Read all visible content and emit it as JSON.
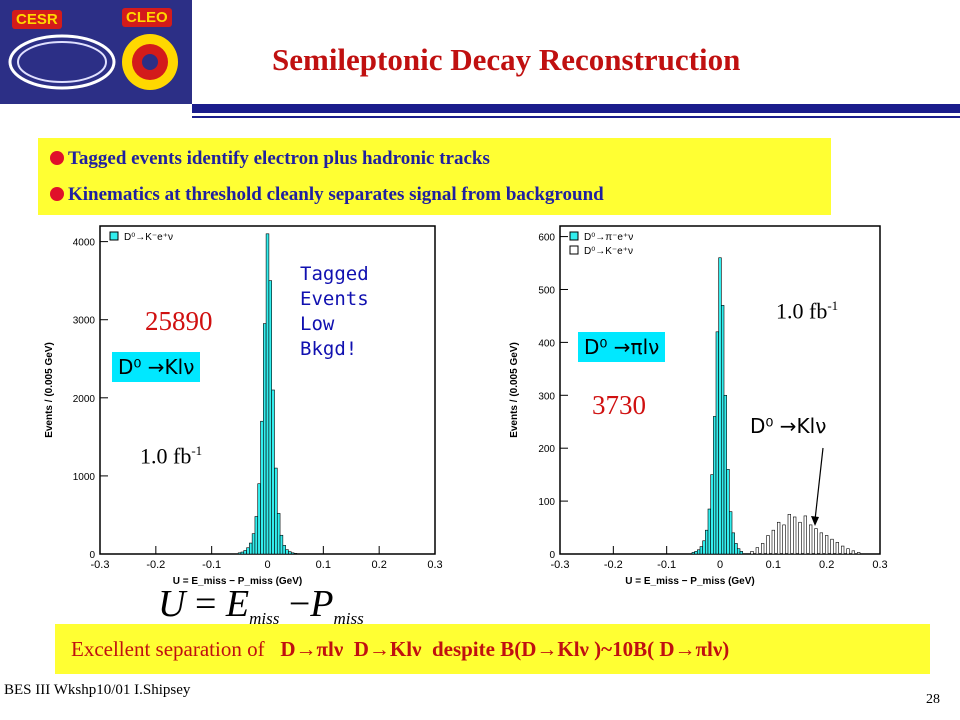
{
  "header": {
    "logo_cesr": "CESR",
    "logo_cleo": "CLEO",
    "title": "Semileptonic  Decay Reconstruction"
  },
  "bullets": [
    "Tagged events identify electron plus hadronic tracks",
    "Kinematics at threshold cleanly separates signal from background"
  ],
  "formula": {
    "lhs": "U",
    "eq": "=",
    "e": "E",
    "e_sub": "miss",
    "minus": "−",
    "p": "P",
    "p_sub": "miss"
  },
  "left_panel": {
    "decay_label": "D⁰ →Klν",
    "count": "25890",
    "lumi": "1.0 fb",
    "lumi_exp": "-1",
    "note": "Tagged\nEvents\nLow\nBkgd!"
  },
  "right_panel": {
    "decay_label": "D⁰ →πlν",
    "count": "3730",
    "lumi": "1.0 fb",
    "lumi_exp": "-1",
    "secondary_label": "D⁰ →Klν"
  },
  "bottom": {
    "lead": "Excellent separation of",
    "parts": [
      "D→πlν",
      "D→Klν",
      "despite B(D→Klν )~10B( D→πlν)"
    ]
  },
  "footer": {
    "left": "BES III Wkshp10/01 I.Shipsey",
    "page": "28"
  },
  "chart_data": [
    {
      "type": "bar",
      "legend": [
        "D⁰→K⁻e⁺ν"
      ],
      "ylabel": "Events / (0.005 GeV)",
      "xlabel": "U = E_miss − P_miss (GeV)",
      "xlim": [
        -0.3,
        0.3
      ],
      "ylim": [
        0,
        4200
      ],
      "xticks": [
        -0.3,
        -0.2,
        -0.1,
        0,
        0.1,
        0.2,
        0.3
      ],
      "yticks": [
        0,
        1000,
        2000,
        3000,
        4000
      ],
      "bin_width": 0.005,
      "x": [
        -0.05,
        -0.045,
        -0.04,
        -0.035,
        -0.03,
        -0.025,
        -0.02,
        -0.015,
        -0.01,
        -0.005,
        0,
        0.005,
        0.01,
        0.015,
        0.02,
        0.025,
        0.03,
        0.035,
        0.04,
        0.045,
        0.05
      ],
      "values": [
        15,
        25,
        45,
        80,
        140,
        260,
        480,
        900,
        1700,
        2950,
        4100,
        3500,
        2100,
        1100,
        520,
        240,
        110,
        55,
        30,
        15,
        8
      ]
    },
    {
      "type": "bar",
      "legend": [
        "D⁰→π⁻e⁺ν",
        "D⁰→K⁻e⁺ν"
      ],
      "ylabel": "Events / (0.005 GeV)",
      "xlabel": "U = E_miss − P_miss (GeV)",
      "xlim": [
        -0.3,
        0.3
      ],
      "ylim": [
        0,
        620
      ],
      "xticks": [
        -0.3,
        -0.2,
        -0.1,
        0,
        0.1,
        0.2,
        0.3
      ],
      "yticks": [
        0,
        100,
        200,
        300,
        400,
        500,
        600
      ],
      "bin_width": 0.005,
      "series": [
        {
          "name": "D⁰→π⁻e⁺ν",
          "x": [
            -0.05,
            -0.045,
            -0.04,
            -0.035,
            -0.03,
            -0.025,
            -0.02,
            -0.015,
            -0.01,
            -0.005,
            0,
            0.005,
            0.01,
            0.015,
            0.02,
            0.025,
            0.03,
            0.035,
            0.04
          ],
          "values": [
            3,
            5,
            8,
            14,
            25,
            45,
            85,
            150,
            260,
            420,
            560,
            470,
            300,
            160,
            80,
            40,
            20,
            10,
            5
          ]
        },
        {
          "name": "D⁰→K⁻e⁺ν",
          "x": [
            0.06,
            0.07,
            0.08,
            0.09,
            0.1,
            0.11,
            0.12,
            0.13,
            0.14,
            0.15,
            0.16,
            0.17,
            0.18,
            0.19,
            0.2,
            0.21,
            0.22,
            0.23,
            0.24,
            0.25,
            0.26
          ],
          "values": [
            5,
            12,
            20,
            35,
            45,
            60,
            55,
            75,
            70,
            60,
            72,
            55,
            48,
            40,
            35,
            28,
            22,
            15,
            10,
            6,
            3
          ]
        }
      ]
    }
  ]
}
